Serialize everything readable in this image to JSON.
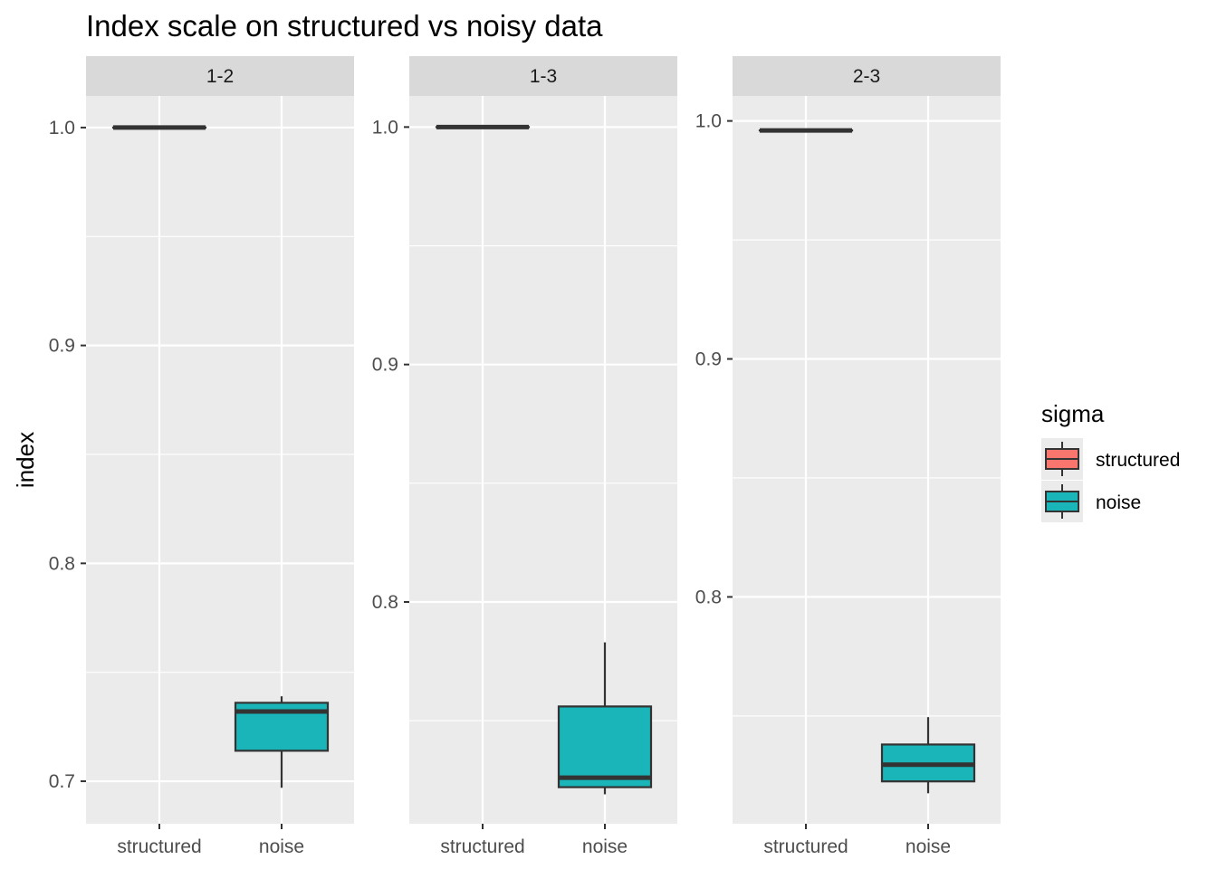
{
  "chart_data": {
    "type": "boxplot",
    "title": "Index scale on structured vs noisy data",
    "ylabel": "index",
    "xlabel": "",
    "categories": [
      "structured",
      "noise"
    ],
    "colors": {
      "structured": "#F8766D",
      "noise": "#19B5B8"
    },
    "grid": true,
    "legend": {
      "title": "sigma",
      "position": "right",
      "items": [
        {
          "label": "structured",
          "color": "#F8766D"
        },
        {
          "label": "noise",
          "color": "#19B5B8"
        }
      ]
    },
    "facets": [
      {
        "label": "1-2",
        "ylim": [
          0.6805,
          1.0145
        ],
        "yticks": [
          0.7,
          0.8,
          0.9,
          1.0
        ],
        "ytick_labels": [
          "0.7",
          "0.8",
          "0.9",
          "1.0"
        ],
        "boxes": [
          {
            "category": "structured",
            "min": 1.0,
            "q1": 1.0,
            "median": 1.0,
            "q3": 1.0,
            "max": 1.0
          },
          {
            "category": "noise",
            "min": 0.697,
            "q1": 0.714,
            "median": 0.732,
            "q3": 0.736,
            "max": 0.739
          }
        ]
      },
      {
        "label": "1-3",
        "ylim": [
          0.7066,
          1.0131
        ],
        "yticks": [
          0.8,
          0.9,
          1.0
        ],
        "ytick_labels": [
          "0.8",
          "0.9",
          "1.0"
        ],
        "boxes": [
          {
            "category": "structured",
            "min": 1.0,
            "q1": 1.0,
            "median": 1.0,
            "q3": 1.0,
            "max": 1.0
          },
          {
            "category": "noise",
            "min": 0.719,
            "q1": 0.722,
            "median": 0.726,
            "q3": 0.756,
            "max": 0.783
          }
        ]
      },
      {
        "label": "2-3",
        "ylim": [
          0.7047,
          1.0105
        ],
        "yticks": [
          0.8,
          0.9,
          1.0
        ],
        "ytick_labels": [
          "0.8",
          "0.9",
          "1.0"
        ],
        "boxes": [
          {
            "category": "structured",
            "min": 0.996,
            "q1": 0.996,
            "median": 0.996,
            "q3": 0.996,
            "max": 0.996
          },
          {
            "category": "noise",
            "min": 0.7175,
            "q1": 0.7225,
            "median": 0.7295,
            "q3": 0.738,
            "max": 0.7495
          }
        ]
      }
    ]
  }
}
